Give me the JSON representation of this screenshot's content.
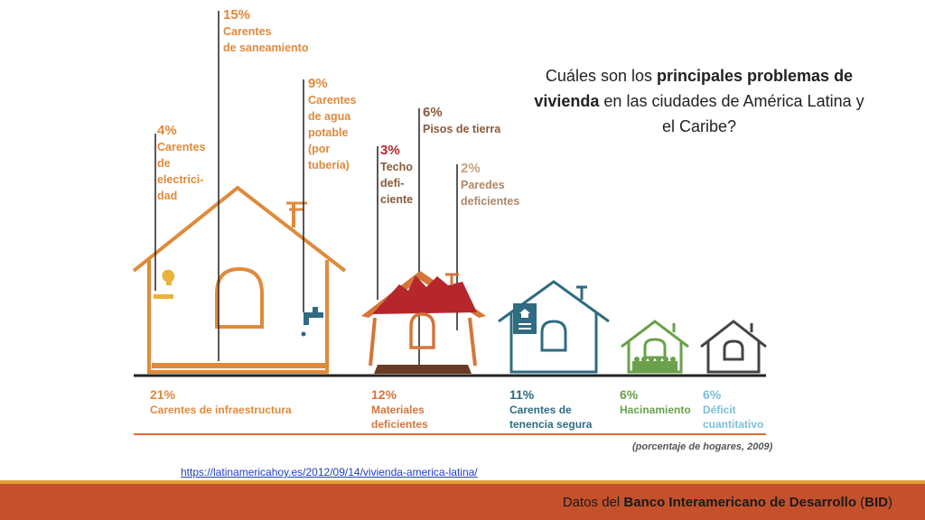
{
  "question": {
    "pre": "Cuáles son los ",
    "bold1": "principales problemas de vivienda",
    "post": " en las ciudades de América Latina y el Caribe?"
  },
  "callouts": {
    "saneamiento": {
      "pct": "15%",
      "text": "Carentes\nde saneamiento",
      "color": "#e08a3a"
    },
    "agua": {
      "pct": "9%",
      "text": "Carentes\nde agua\npotable\n(por\ntubería)",
      "color": "#e08a3a"
    },
    "electricidad": {
      "pct": "4%",
      "text": "Carentes\nde\nelectrici-\ndad",
      "color": "#e08a3a"
    },
    "techo": {
      "pct": "3%",
      "text": "Techo\ndefi-\nciente",
      "color": "#b5272d"
    },
    "pisos": {
      "pct": "6%",
      "text": "Pisos de tierra",
      "color": "#8a5a3c"
    },
    "paredes": {
      "pct": "2%",
      "text": "Paredes\ndeficientes",
      "color": "#c9a27a"
    }
  },
  "bottom": {
    "infra": {
      "pct": "21%",
      "text": "Carentes de infraestructura",
      "color": "#e08a3a"
    },
    "materiales": {
      "pct": "12%",
      "text": "Materiales\ndeficientes",
      "color": "#d4763a"
    },
    "tenencia": {
      "pct": "11%",
      "text": "Carentes de\ntenencia segura",
      "color": "#2f6b82"
    },
    "hacinamiento": {
      "pct": "6%",
      "text": "Hacinamiento",
      "color": "#6aa14a"
    },
    "deficit": {
      "pct": "6%",
      "text": "Déficit\ncuantitativo",
      "color": "#7bbfdd"
    }
  },
  "note": "(porcentaje de hogares, 2009)",
  "source_url": "https://latinamericahoy.es/2012/09/14/vivienda-america-latina/",
  "footer": {
    "pre": "Datos del ",
    "bold": "Banco Interamericano de Desarrollo",
    "mid": " (",
    "abbr": "BID",
    "post": ")"
  }
}
